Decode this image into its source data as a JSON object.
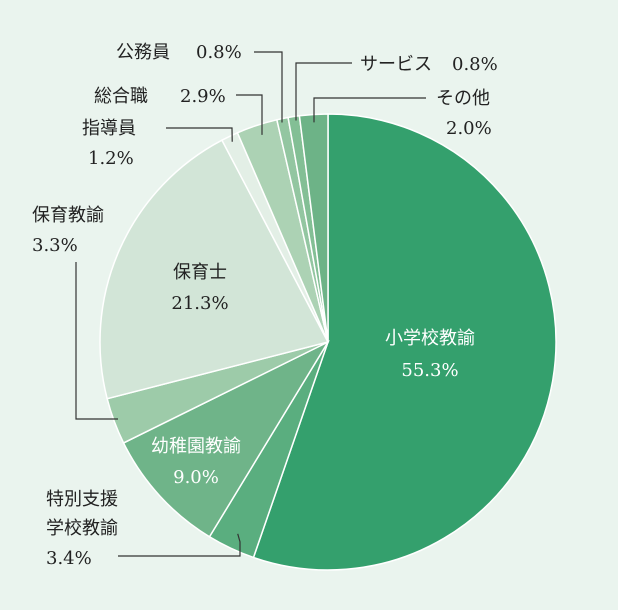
{
  "chart_data": {
    "type": "pie",
    "title": "",
    "slices": [
      {
        "label": "小学校教諭",
        "value": 55.3,
        "value_label": "55.3%",
        "color": "#34a06d"
      },
      {
        "label": "特別支援学校教諭",
        "value": 3.4,
        "value_label": "3.4%",
        "color": "#5aae7f"
      },
      {
        "label": "幼稚園教諭",
        "value": 9.0,
        "value_label": "9.0%",
        "color": "#6fb489"
      },
      {
        "label": "保育教諭",
        "value": 3.3,
        "value_label": "3.3%",
        "color": "#9dcba9"
      },
      {
        "label": "保育士",
        "value": 21.3,
        "value_label": "21.3%",
        "color": "#d2e5d7"
      },
      {
        "label": "指導員",
        "value": 1.2,
        "value_label": "1.2%",
        "color": "#e3efe6"
      },
      {
        "label": "総合職",
        "value": 2.9,
        "value_label": "2.9%",
        "color": "#acd2b4"
      },
      {
        "label": "公務員",
        "value": 0.8,
        "value_label": "0.8%",
        "color": "#93c6a1"
      },
      {
        "label": "サービス",
        "value": 0.8,
        "value_label": "0.8%",
        "color": "#83bf95"
      },
      {
        "label": "その他",
        "value": 2.0,
        "value_label": "2.0%",
        "color": "#6db387"
      }
    ]
  }
}
